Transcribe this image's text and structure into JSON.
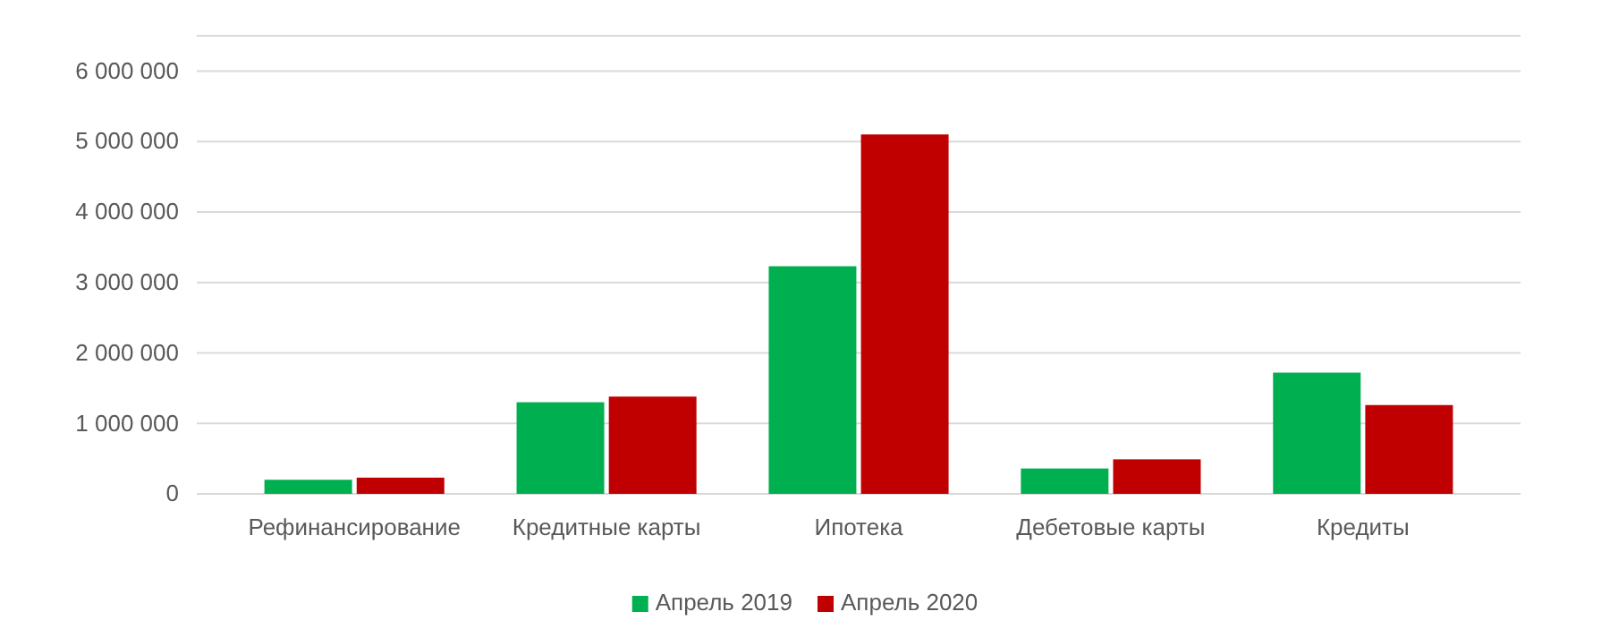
{
  "chart_data": {
    "type": "bar",
    "categories": [
      "Рефинансирование",
      "Кредитные карты",
      "Ипотека",
      "Дебетовые карты",
      "Кредиты"
    ],
    "series": [
      {
        "name": "Апрель 2019",
        "color": "#00b050",
        "values": [
          200000,
          1300000,
          3230000,
          360000,
          1720000
        ]
      },
      {
        "name": "Апрель 2020",
        "color": "#c00000",
        "values": [
          230000,
          1380000,
          5100000,
          490000,
          1260000
        ]
      }
    ],
    "ylim": [
      0,
      6500000
    ],
    "yticks": [
      {
        "value": 0,
        "label": "0"
      },
      {
        "value": 1000000,
        "label": "1 000 000"
      },
      {
        "value": 2000000,
        "label": "2 000 000"
      },
      {
        "value": 3000000,
        "label": "3 000 000"
      },
      {
        "value": 4000000,
        "label": "4 000 000"
      },
      {
        "value": 5000000,
        "label": "5 000 000"
      },
      {
        "value": 6000000,
        "label": "6 000 000"
      }
    ],
    "grid": "y",
    "legend": "bottom"
  }
}
